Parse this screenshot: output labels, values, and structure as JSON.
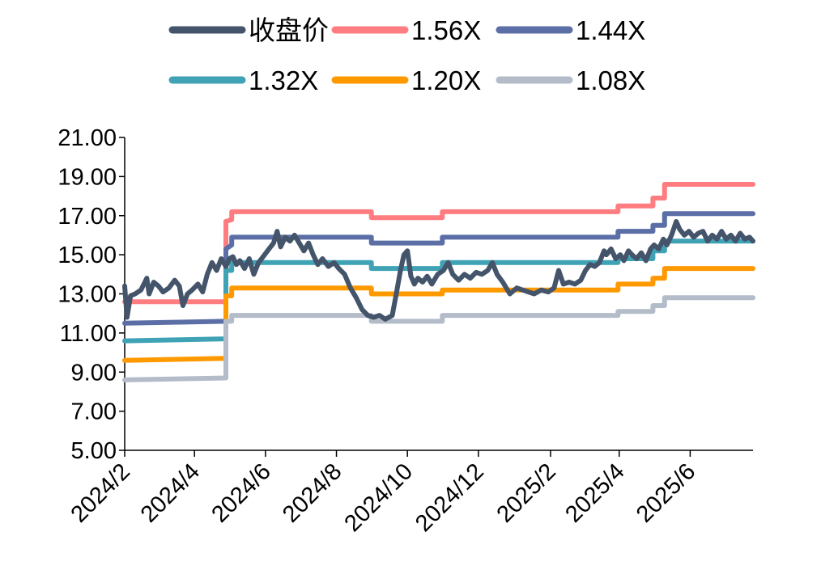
{
  "chart_data": {
    "type": "line",
    "title": "",
    "xlabel": "",
    "ylabel": "",
    "ylim": [
      5,
      21
    ],
    "yticks": [
      "5.00",
      "7.00",
      "9.00",
      "11.00",
      "13.00",
      "15.00",
      "17.00",
      "19.00",
      "21.00"
    ],
    "x_range": [
      "2024-02-01",
      "2025-07-25"
    ],
    "xticks": [
      {
        "date": "2024-02-01",
        "label": "2024/2"
      },
      {
        "date": "2024-04-01",
        "label": "2024/4"
      },
      {
        "date": "2024-06-01",
        "label": "2024/6"
      },
      {
        "date": "2024-08-01",
        "label": "2024/8"
      },
      {
        "date": "2024-10-01",
        "label": "2024/10"
      },
      {
        "date": "2024-12-01",
        "label": "2024/12"
      },
      {
        "date": "2025-02-01",
        "label": "2025/2"
      },
      {
        "date": "2025-04-01",
        "label": "2025/4"
      },
      {
        "date": "2025-06-01",
        "label": "2025/6"
      }
    ],
    "grid": false,
    "legend_position": "top",
    "series": [
      {
        "name": "收盘价",
        "color": "#44546a",
        "kind": "close",
        "points": [
          [
            "2024-02-01",
            13.4
          ],
          [
            "2024-02-03",
            11.8
          ],
          [
            "2024-02-06",
            12.9
          ],
          [
            "2024-02-10",
            13.0
          ],
          [
            "2024-02-15",
            13.2
          ],
          [
            "2024-02-20",
            13.8
          ],
          [
            "2024-02-22",
            13.0
          ],
          [
            "2024-02-26",
            13.6
          ],
          [
            "2024-03-01",
            13.4
          ],
          [
            "2024-03-05",
            13.1
          ],
          [
            "2024-03-10",
            13.3
          ],
          [
            "2024-03-15",
            13.7
          ],
          [
            "2024-03-19",
            13.4
          ],
          [
            "2024-03-22",
            12.4
          ],
          [
            "2024-03-26",
            13.0
          ],
          [
            "2024-03-30",
            13.2
          ],
          [
            "2024-04-04",
            13.5
          ],
          [
            "2024-04-08",
            13.1
          ],
          [
            "2024-04-12",
            14.0
          ],
          [
            "2024-04-16",
            14.6
          ],
          [
            "2024-04-20",
            14.2
          ],
          [
            "2024-04-24",
            14.8
          ],
          [
            "2024-04-28",
            14.4
          ],
          [
            "2024-05-01",
            14.8
          ],
          [
            "2024-05-04",
            14.9
          ],
          [
            "2024-05-07",
            14.5
          ],
          [
            "2024-05-10",
            14.7
          ],
          [
            "2024-05-14",
            14.3
          ],
          [
            "2024-05-18",
            14.8
          ],
          [
            "2024-05-22",
            14.0
          ],
          [
            "2024-05-26",
            14.6
          ],
          [
            "2024-05-30",
            14.9
          ],
          [
            "2024-06-04",
            15.3
          ],
          [
            "2024-06-08",
            15.6
          ],
          [
            "2024-06-11",
            16.2
          ],
          [
            "2024-06-14",
            15.4
          ],
          [
            "2024-06-18",
            15.9
          ],
          [
            "2024-06-22",
            15.7
          ],
          [
            "2024-06-26",
            16.0
          ],
          [
            "2024-06-30",
            15.6
          ],
          [
            "2024-07-04",
            15.2
          ],
          [
            "2024-07-08",
            15.6
          ],
          [
            "2024-07-12",
            15.0
          ],
          [
            "2024-07-16",
            14.5
          ],
          [
            "2024-07-20",
            14.8
          ],
          [
            "2024-07-25",
            14.4
          ],
          [
            "2024-07-30",
            14.6
          ],
          [
            "2024-08-03",
            14.3
          ],
          [
            "2024-08-08",
            14.0
          ],
          [
            "2024-08-13",
            13.3
          ],
          [
            "2024-08-18",
            12.8
          ],
          [
            "2024-08-23",
            12.2
          ],
          [
            "2024-08-28",
            11.9
          ],
          [
            "2024-09-02",
            11.8
          ],
          [
            "2024-09-07",
            11.9
          ],
          [
            "2024-09-12",
            11.7
          ],
          [
            "2024-09-18",
            11.9
          ],
          [
            "2024-09-22",
            13.2
          ],
          [
            "2024-09-25",
            14.2
          ],
          [
            "2024-09-28",
            15.0
          ],
          [
            "2024-10-01",
            15.2
          ],
          [
            "2024-10-04",
            13.9
          ],
          [
            "2024-10-07",
            13.5
          ],
          [
            "2024-10-10",
            13.8
          ],
          [
            "2024-10-14",
            13.6
          ],
          [
            "2024-10-18",
            13.9
          ],
          [
            "2024-10-22",
            13.5
          ],
          [
            "2024-10-27",
            14.0
          ],
          [
            "2024-11-01",
            14.2
          ],
          [
            "2024-11-05",
            14.6
          ],
          [
            "2024-11-09",
            14.0
          ],
          [
            "2024-11-14",
            13.7
          ],
          [
            "2024-11-19",
            14.0
          ],
          [
            "2024-11-24",
            13.8
          ],
          [
            "2024-11-29",
            14.1
          ],
          [
            "2024-12-04",
            14.0
          ],
          [
            "2024-12-09",
            14.2
          ],
          [
            "2024-12-13",
            14.6
          ],
          [
            "2024-12-17",
            14.0
          ],
          [
            "2024-12-22",
            13.6
          ],
          [
            "2024-12-28",
            13.0
          ],
          [
            "2025-01-03",
            13.3
          ],
          [
            "2025-01-08",
            13.2
          ],
          [
            "2025-01-13",
            13.1
          ],
          [
            "2025-01-18",
            13.0
          ],
          [
            "2025-01-24",
            13.2
          ],
          [
            "2025-01-30",
            13.1
          ],
          [
            "2025-02-04",
            13.3
          ],
          [
            "2025-02-08",
            14.2
          ],
          [
            "2025-02-12",
            13.5
          ],
          [
            "2025-02-17",
            13.6
          ],
          [
            "2025-02-22",
            13.5
          ],
          [
            "2025-02-27",
            13.7
          ],
          [
            "2025-03-03",
            14.2
          ],
          [
            "2025-03-07",
            14.5
          ],
          [
            "2025-03-11",
            14.4
          ],
          [
            "2025-03-15",
            14.6
          ],
          [
            "2025-03-19",
            15.2
          ],
          [
            "2025-03-21",
            15.0
          ],
          [
            "2025-03-25",
            15.3
          ],
          [
            "2025-03-29",
            14.8
          ],
          [
            "2025-04-02",
            15.0
          ],
          [
            "2025-04-05",
            14.7
          ],
          [
            "2025-04-09",
            15.2
          ],
          [
            "2025-04-12",
            15.0
          ],
          [
            "2025-04-16",
            14.8
          ],
          [
            "2025-04-20",
            15.1
          ],
          [
            "2025-04-24",
            14.7
          ],
          [
            "2025-04-28",
            15.3
          ],
          [
            "2025-05-01",
            15.5
          ],
          [
            "2025-05-05",
            15.3
          ],
          [
            "2025-05-09",
            15.8
          ],
          [
            "2025-05-12",
            15.5
          ],
          [
            "2025-05-16",
            16.0
          ],
          [
            "2025-05-20",
            16.7
          ],
          [
            "2025-05-23",
            16.3
          ],
          [
            "2025-05-27",
            16.0
          ],
          [
            "2025-05-31",
            16.2
          ],
          [
            "2025-06-04",
            15.9
          ],
          [
            "2025-06-08",
            16.1
          ],
          [
            "2025-06-12",
            16.2
          ],
          [
            "2025-06-16",
            15.7
          ],
          [
            "2025-06-20",
            16.0
          ],
          [
            "2025-06-24",
            15.8
          ],
          [
            "2025-06-28",
            16.2
          ],
          [
            "2025-07-02",
            15.8
          ],
          [
            "2025-07-06",
            16.0
          ],
          [
            "2025-07-10",
            15.7
          ],
          [
            "2025-07-14",
            16.1
          ],
          [
            "2025-07-18",
            15.8
          ],
          [
            "2025-07-22",
            15.9
          ],
          [
            "2025-07-25",
            15.7
          ]
        ]
      },
      {
        "name": "1.56X",
        "color": "#ff7c80",
        "kind": "band",
        "points": [
          [
            "2024-02-01",
            12.6
          ],
          [
            "2024-04-28",
            12.6
          ],
          [
            "2024-04-28",
            16.7
          ],
          [
            "2024-05-03",
            16.8
          ],
          [
            "2024-05-03",
            17.2
          ],
          [
            "2024-08-31",
            17.2
          ],
          [
            "2024-08-31",
            16.9
          ],
          [
            "2024-10-31",
            16.9
          ],
          [
            "2024-10-31",
            17.2
          ],
          [
            "2025-03-31",
            17.2
          ],
          [
            "2025-03-31",
            17.5
          ],
          [
            "2025-04-30",
            17.5
          ],
          [
            "2025-04-30",
            17.9
          ],
          [
            "2025-05-10",
            17.9
          ],
          [
            "2025-05-10",
            18.6
          ],
          [
            "2025-07-25",
            18.6
          ]
        ]
      },
      {
        "name": "1.44X",
        "color": "#5b6fa6",
        "kind": "band",
        "points": [
          [
            "2024-02-01",
            11.5
          ],
          [
            "2024-04-28",
            11.6
          ],
          [
            "2024-04-28",
            15.3
          ],
          [
            "2024-05-03",
            15.5
          ],
          [
            "2024-05-03",
            15.9
          ],
          [
            "2024-08-31",
            15.9
          ],
          [
            "2024-08-31",
            15.6
          ],
          [
            "2024-10-31",
            15.6
          ],
          [
            "2024-10-31",
            15.9
          ],
          [
            "2025-03-31",
            15.9
          ],
          [
            "2025-03-31",
            16.2
          ],
          [
            "2025-04-30",
            16.2
          ],
          [
            "2025-04-30",
            16.5
          ],
          [
            "2025-05-10",
            16.5
          ],
          [
            "2025-05-10",
            17.1
          ],
          [
            "2025-07-25",
            17.1
          ]
        ]
      },
      {
        "name": "1.32X",
        "color": "#3fa2b5",
        "kind": "band",
        "points": [
          [
            "2024-02-01",
            10.6
          ],
          [
            "2024-04-28",
            10.7
          ],
          [
            "2024-04-28",
            14.2
          ],
          [
            "2024-05-03",
            14.2
          ],
          [
            "2024-05-03",
            14.6
          ],
          [
            "2024-08-31",
            14.6
          ],
          [
            "2024-08-31",
            14.3
          ],
          [
            "2024-10-31",
            14.3
          ],
          [
            "2024-10-31",
            14.6
          ],
          [
            "2025-03-31",
            14.6
          ],
          [
            "2025-03-31",
            14.8
          ],
          [
            "2025-04-30",
            14.8
          ],
          [
            "2025-04-30",
            15.2
          ],
          [
            "2025-05-10",
            15.2
          ],
          [
            "2025-05-10",
            15.7
          ],
          [
            "2025-07-25",
            15.7
          ]
        ]
      },
      {
        "name": "1.20X",
        "color": "#ff9900",
        "kind": "band",
        "points": [
          [
            "2024-02-01",
            9.6
          ],
          [
            "2024-04-28",
            9.7
          ],
          [
            "2024-04-28",
            12.9
          ],
          [
            "2024-05-03",
            12.9
          ],
          [
            "2024-05-03",
            13.3
          ],
          [
            "2024-08-31",
            13.3
          ],
          [
            "2024-08-31",
            13.0
          ],
          [
            "2024-10-31",
            13.0
          ],
          [
            "2024-10-31",
            13.2
          ],
          [
            "2025-03-31",
            13.2
          ],
          [
            "2025-03-31",
            13.5
          ],
          [
            "2025-04-30",
            13.5
          ],
          [
            "2025-04-30",
            13.8
          ],
          [
            "2025-05-10",
            13.8
          ],
          [
            "2025-05-10",
            14.3
          ],
          [
            "2025-07-25",
            14.3
          ]
        ]
      },
      {
        "name": "1.08X",
        "color": "#b4bcc9",
        "kind": "band",
        "points": [
          [
            "2024-02-01",
            8.6
          ],
          [
            "2024-04-28",
            8.7
          ],
          [
            "2024-04-28",
            11.6
          ],
          [
            "2024-05-03",
            11.6
          ],
          [
            "2024-05-03",
            11.9
          ],
          [
            "2024-08-31",
            11.9
          ],
          [
            "2024-08-31",
            11.6
          ],
          [
            "2024-10-31",
            11.6
          ],
          [
            "2024-10-31",
            11.9
          ],
          [
            "2025-03-31",
            11.9
          ],
          [
            "2025-03-31",
            12.1
          ],
          [
            "2025-04-30",
            12.1
          ],
          [
            "2025-04-30",
            12.4
          ],
          [
            "2025-05-10",
            12.4
          ],
          [
            "2025-05-10",
            12.8
          ],
          [
            "2025-07-25",
            12.8
          ]
        ]
      }
    ]
  }
}
